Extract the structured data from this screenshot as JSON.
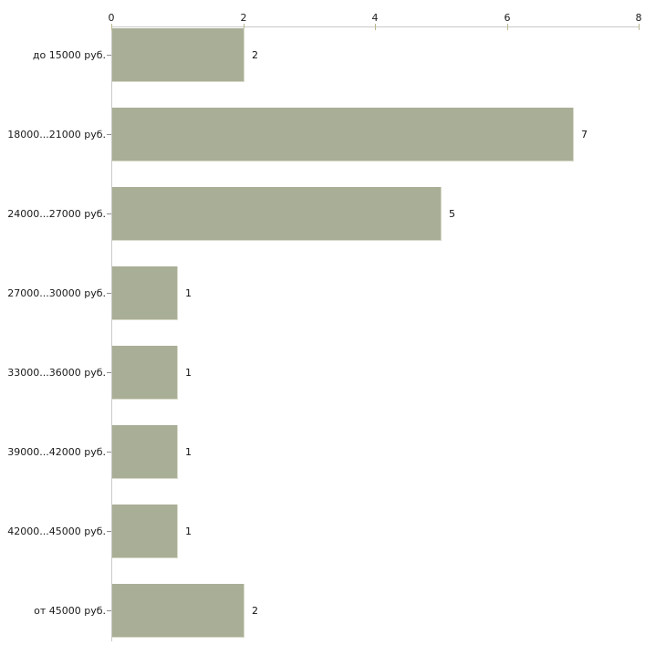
{
  "chart_data": {
    "type": "bar",
    "orientation": "horizontal",
    "title": "",
    "xlabel": "",
    "ylabel": "",
    "categories": [
      "до 15000 руб.",
      "18000...21000 руб.",
      "24000...27000 руб.",
      "27000...30000 руб.",
      "33000...36000 руб.",
      "39000...42000 руб.",
      "42000...45000 руб.",
      "от 45000 руб."
    ],
    "values": [
      2,
      7,
      5,
      1,
      1,
      1,
      1,
      2
    ],
    "value_labels": [
      "2",
      "7",
      "5",
      "1",
      "1",
      "1",
      "1",
      "2"
    ],
    "xlim": [
      0,
      8
    ],
    "x_ticks": [
      "0",
      "2",
      "4",
      "6",
      "8"
    ],
    "x_tick_values": [
      0,
      2,
      4,
      6,
      8
    ],
    "axis_position": "top",
    "grid": false,
    "legend": false
  },
  "colors": {
    "background": "#ffffff",
    "bar_fill": "#a9ae96",
    "bar_edge": "#d8dbca",
    "axis_line": "#c9c9c9",
    "tick_mark": "#b9b98f",
    "category_tick": "#8f8f8f",
    "text": "#1a1a1a"
  }
}
